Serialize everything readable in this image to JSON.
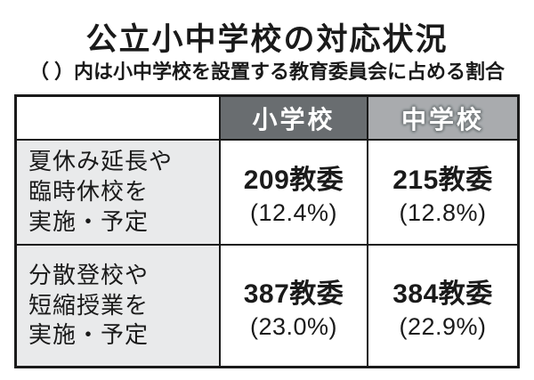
{
  "display": {
    "title": "公立小中学校の対応状況",
    "subtitle": "（ ）内は小中学校を設置する教育委員会に占める割合",
    "header": {
      "col1": "",
      "col2": "小学校",
      "col3": "中学校"
    },
    "rows": [
      {
        "label": [
          "夏休み延長や",
          "臨時休校を",
          "実施・予定"
        ],
        "cells": [
          {
            "count": "209教委",
            "pct": "(12.4%)"
          },
          {
            "count": "215教委",
            "pct": "(12.8%)"
          }
        ]
      },
      {
        "label": [
          "分散登校や",
          "短縮授業を",
          "実施・予定"
        ],
        "cells": [
          {
            "count": "387教委",
            "pct": "(23.0%)"
          },
          {
            "count": "384教委",
            "pct": "(22.9%)"
          }
        ]
      }
    ]
  },
  "chart_data": {
    "type": "table",
    "title": "公立小中学校の対応状況",
    "subtitle": "（ ）内は小中学校を設置する教育委員会に占める割合",
    "columns": [
      "",
      "小学校",
      "中学校"
    ],
    "rows": [
      {
        "label": "夏休み延長や臨時休校を実施・予定",
        "elementary_count": 209,
        "elementary_unit": "教委",
        "elementary_percent": 12.4,
        "junior_count": 215,
        "junior_unit": "教委",
        "junior_percent": 12.8
      },
      {
        "label": "分散登校や短縮授業を実施・予定",
        "elementary_count": 387,
        "elementary_unit": "教委",
        "elementary_percent": 23.0,
        "junior_count": 384,
        "junior_unit": "教委",
        "junior_percent": 22.9
      }
    ]
  },
  "colors": {
    "header_dark_bg": "#696d70",
    "header_light_bg": "#a9abae",
    "label_cell_bg": "#e9eaeb",
    "border": "#1a1a1a",
    "text": "#1a1a1a",
    "header_text": "#ffffff"
  }
}
